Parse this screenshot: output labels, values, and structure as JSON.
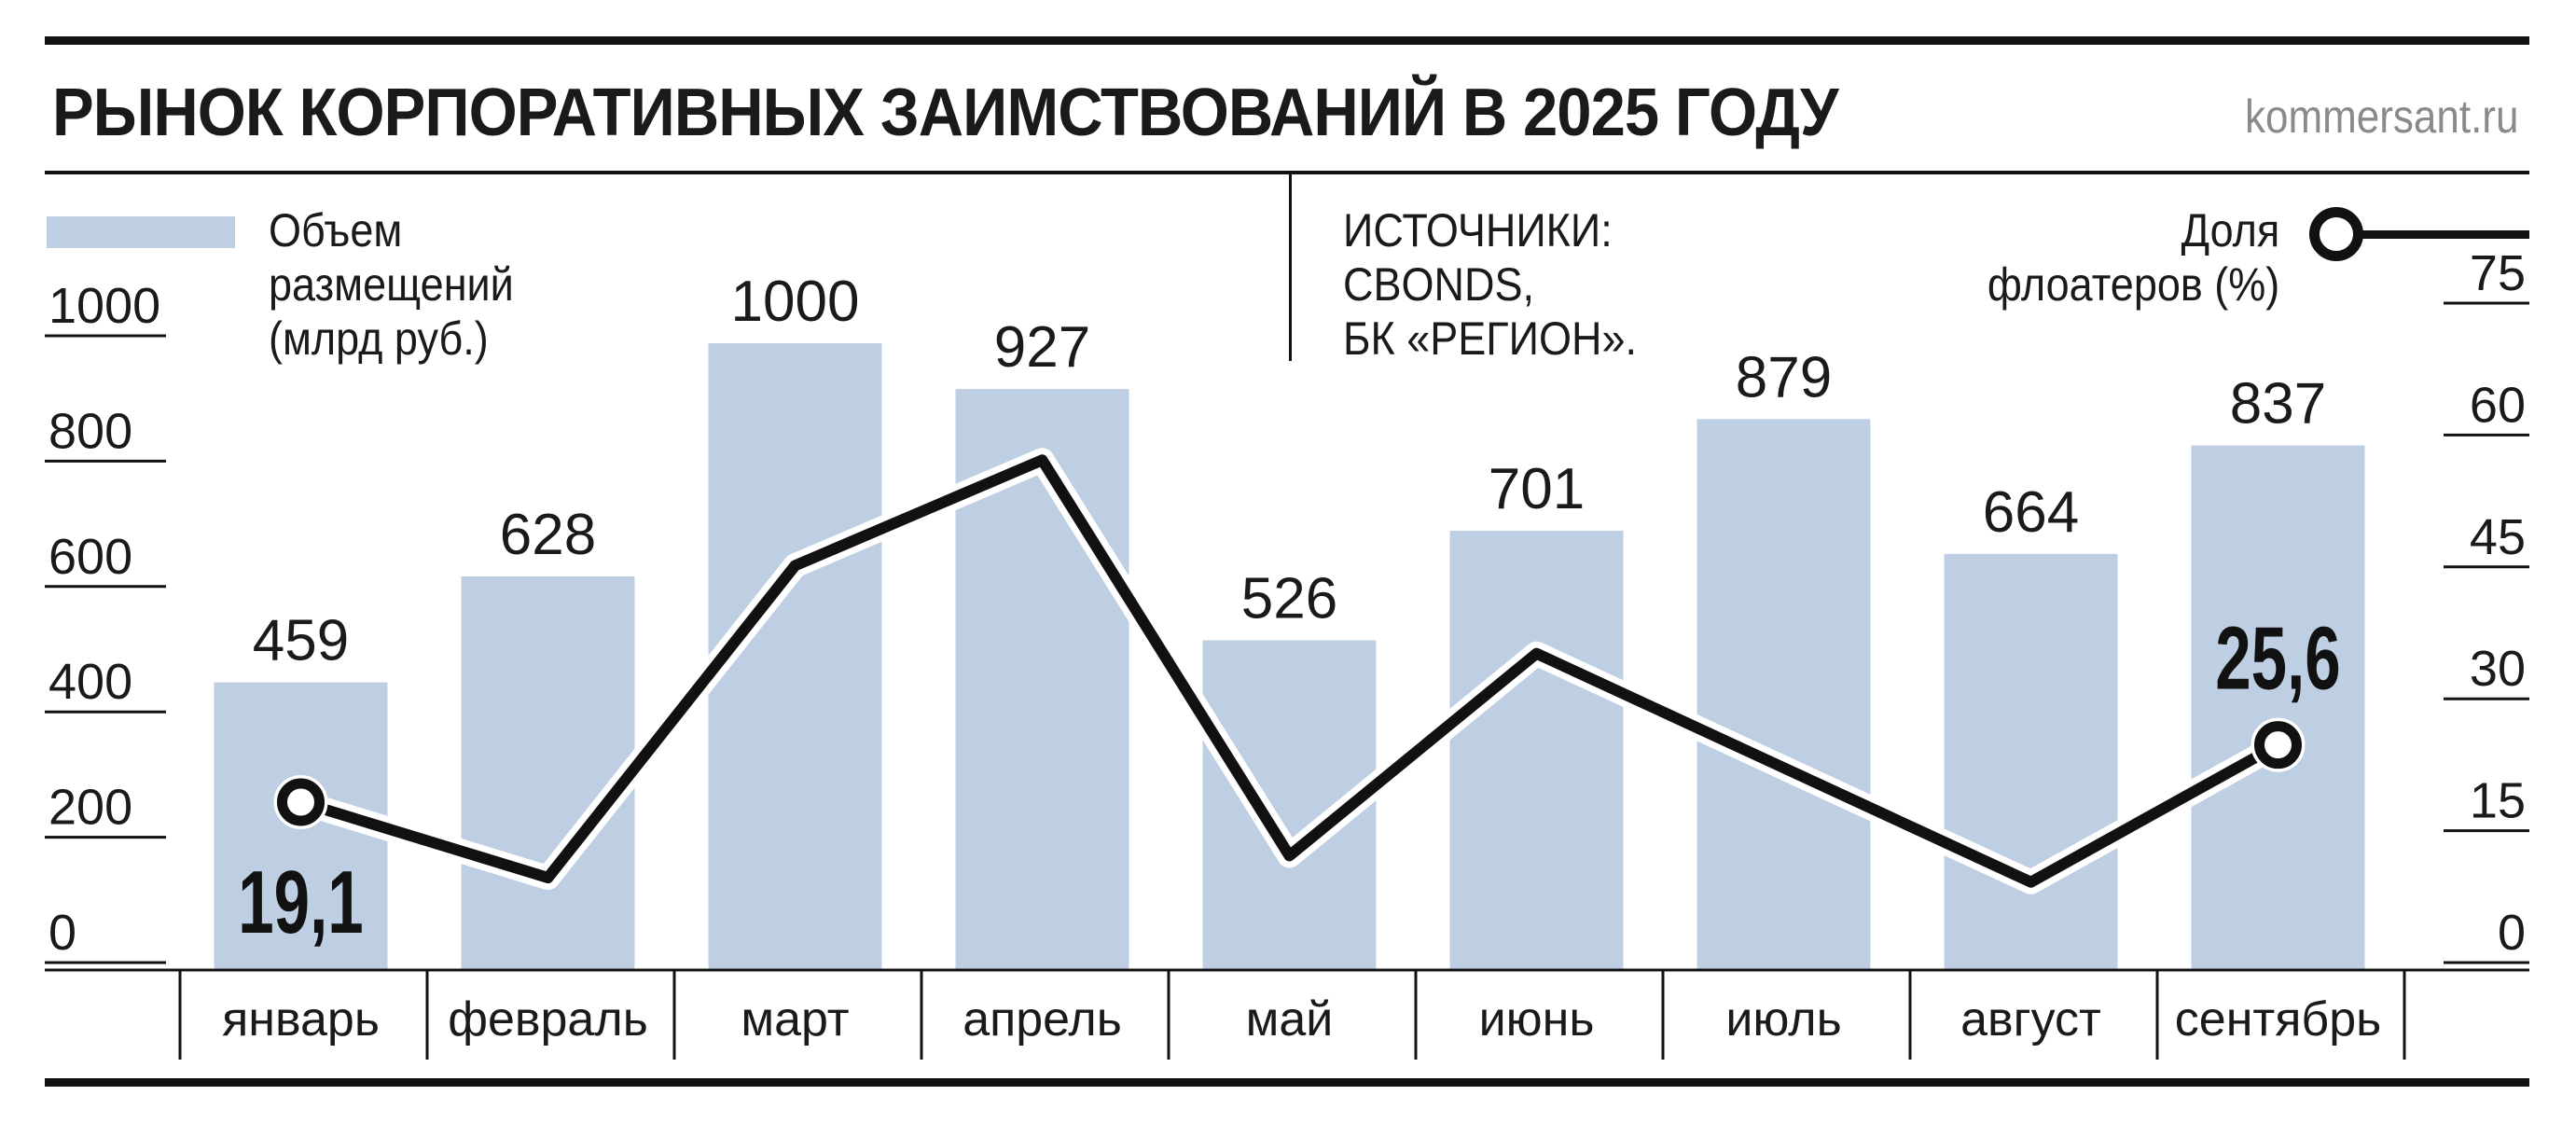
{
  "title": "РЫНОК КОРПОРАТИВНЫХ ЗАИМСТВОВАНИЙ В 2025 ГОДУ",
  "site": "kommersant.ru",
  "legend_bars": [
    "Объем",
    "размещений",
    "(млрд руб.)"
  ],
  "sources": [
    "ИСТОЧНИКИ:",
    "CBONDS,",
    "БК «РЕГИОН»."
  ],
  "legend_line": [
    "Доля",
    "флоатеров (%)"
  ],
  "colors": {
    "bar": "#bfcfe3",
    "line": "#111111",
    "text": "#1a1a1a",
    "site": "#8a8a8a"
  },
  "chart_data": {
    "type": "bar",
    "categories": [
      "январь",
      "февраль",
      "март",
      "апрель",
      "май",
      "июнь",
      "июль",
      "август",
      "сентябрь"
    ],
    "series": [
      {
        "name": "Объем размещений (млрд руб.)",
        "type": "bar",
        "axis": "left",
        "values": [
          459,
          628,
          1000,
          927,
          526,
          701,
          879,
          664,
          837
        ]
      },
      {
        "name": "Доля флоатеров (%)",
        "type": "line",
        "axis": "right",
        "values": [
          19.1,
          10.5,
          46,
          58,
          13,
          36,
          23,
          10,
          25.6
        ]
      }
    ],
    "point_labels": {
      "first": "19,1",
      "last": "25,6"
    },
    "left_axis": {
      "ticks": [
        "0",
        "200",
        "400",
        "600",
        "800",
        "1000"
      ],
      "ylim": [
        0,
        1000
      ]
    },
    "right_axis": {
      "ticks": [
        "0",
        "15",
        "30",
        "45",
        "60",
        "75"
      ],
      "ylim": [
        0,
        75
      ]
    },
    "grid": false
  }
}
